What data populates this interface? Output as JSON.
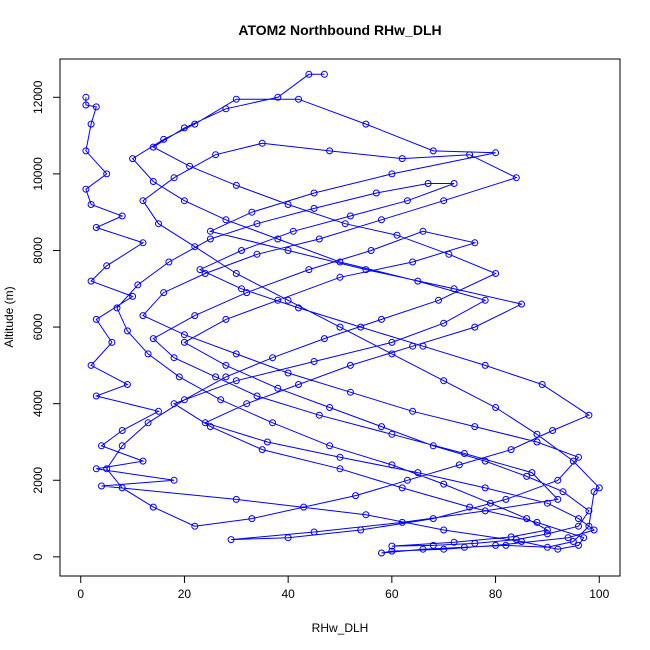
{
  "chart_data": {
    "type": "line",
    "title": "ATOM2 Northbound RHw_DLH",
    "xlabel": "RHw_DLH",
    "ylabel": "Altitude (m)",
    "xlim": [
      -4,
      104
    ],
    "ylim": [
      -500,
      13000
    ],
    "xticks": [
      0,
      20,
      40,
      60,
      80,
      100
    ],
    "yticks": [
      0,
      2000,
      4000,
      6000,
      8000,
      10000,
      12000
    ],
    "grid": false,
    "legend": "none",
    "colors": {
      "series": "#0000ff",
      "axis": "#000000",
      "background": "#ffffff"
    },
    "series": [
      {
        "marker": "open-circle",
        "line": true,
        "points": [
          [
            1,
            12000
          ],
          [
            1,
            11800
          ],
          [
            3,
            11750
          ],
          [
            2,
            11300
          ],
          [
            1,
            10600
          ],
          [
            5,
            10000
          ],
          [
            1,
            9600
          ],
          [
            2,
            9200
          ],
          [
            8,
            8900
          ],
          [
            3,
            8600
          ],
          [
            12,
            8200
          ],
          [
            5,
            7600
          ],
          [
            2,
            7200
          ],
          [
            10,
            6800
          ],
          [
            3,
            6200
          ],
          [
            6,
            5600
          ],
          [
            2,
            5000
          ],
          [
            9,
            4500
          ],
          [
            3,
            4200
          ],
          [
            15,
            3800
          ],
          [
            8,
            3300
          ],
          [
            4,
            2900
          ],
          [
            12,
            2500
          ],
          [
            3,
            2300
          ],
          [
            18,
            2000
          ],
          [
            4,
            1850
          ],
          [
            30,
            1500
          ],
          [
            55,
            1100
          ],
          [
            70,
            700
          ],
          [
            85,
            400
          ],
          [
            92,
            200
          ],
          [
            96,
            300
          ],
          [
            97,
            500
          ],
          [
            88,
            900
          ],
          [
            75,
            1300
          ],
          [
            62,
            1800
          ],
          [
            50,
            2300
          ],
          [
            35,
            2800
          ],
          [
            25,
            3400
          ],
          [
            18,
            4000
          ],
          [
            30,
            4600
          ],
          [
            45,
            5100
          ],
          [
            60,
            5600
          ],
          [
            70,
            6100
          ],
          [
            78,
            6700
          ],
          [
            65,
            7200
          ],
          [
            50,
            7700
          ],
          [
            38,
            8300
          ],
          [
            28,
            8800
          ],
          [
            20,
            9300
          ],
          [
            14,
            9800
          ],
          [
            10,
            10400
          ],
          [
            16,
            10900
          ],
          [
            22,
            11300
          ],
          [
            30,
            11950
          ],
          [
            42,
            11950
          ],
          [
            55,
            11300
          ],
          [
            68,
            10600
          ],
          [
            80,
            10550
          ],
          [
            60,
            10000
          ],
          [
            45,
            9500
          ],
          [
            33,
            9000
          ],
          [
            25,
            8500
          ],
          [
            40,
            8000
          ],
          [
            55,
            7500
          ],
          [
            72,
            7000
          ],
          [
            85,
            6600
          ],
          [
            76,
            6000
          ],
          [
            64,
            5500
          ],
          [
            52,
            5000
          ],
          [
            42,
            4500
          ],
          [
            32,
            4000
          ],
          [
            24,
            3500
          ],
          [
            36,
            3000
          ],
          [
            50,
            2600
          ],
          [
            65,
            2200
          ],
          [
            78,
            1800
          ],
          [
            90,
            1400
          ],
          [
            96,
            1000
          ],
          [
            99,
            700
          ],
          [
            94,
            500
          ],
          [
            80,
            300
          ],
          [
            70,
            200
          ],
          [
            60,
            150
          ],
          [
            58,
            100
          ],
          [
            66,
            200
          ],
          [
            74,
            250
          ],
          [
            82,
            300
          ],
          [
            90,
            250
          ],
          [
            95,
            400
          ],
          [
            98,
            800
          ],
          [
            99,
            1700
          ],
          [
            100,
            1800
          ],
          [
            95,
            2500
          ],
          [
            88,
            3200
          ],
          [
            80,
            3900
          ],
          [
            70,
            4600
          ],
          [
            60,
            5300
          ],
          [
            50,
            6000
          ],
          [
            40,
            6700
          ],
          [
            30,
            7400
          ],
          [
            22,
            8100
          ],
          [
            15,
            8700
          ],
          [
            12,
            9300
          ],
          [
            18,
            9900
          ],
          [
            26,
            10500
          ],
          [
            35,
            10800
          ],
          [
            48,
            10600
          ],
          [
            62,
            10400
          ],
          [
            75,
            10500
          ],
          [
            84,
            9900
          ],
          [
            70,
            9300
          ],
          [
            58,
            8800
          ],
          [
            46,
            8300
          ],
          [
            34,
            7900
          ],
          [
            24,
            7400
          ],
          [
            16,
            6900
          ],
          [
            12,
            6300
          ],
          [
            20,
            5800
          ],
          [
            30,
            5300
          ],
          [
            40,
            4800
          ],
          [
            52,
            4300
          ],
          [
            64,
            3800
          ],
          [
            76,
            3400
          ],
          [
            88,
            3000
          ],
          [
            96,
            2600
          ],
          [
            92,
            2000
          ],
          [
            82,
            1500
          ],
          [
            68,
            1000
          ],
          [
            54,
            700
          ],
          [
            40,
            500
          ],
          [
            29,
            450
          ],
          [
            45,
            650
          ],
          [
            62,
            900
          ],
          [
            78,
            1200
          ],
          [
            92,
            1500
          ],
          [
            87,
            2200
          ],
          [
            74,
            2700
          ],
          [
            60,
            3200
          ],
          [
            46,
            3700
          ],
          [
            34,
            4200
          ],
          [
            26,
            4700
          ],
          [
            18,
            5200
          ],
          [
            14,
            5700
          ],
          [
            22,
            6300
          ],
          [
            32,
            6900
          ],
          [
            44,
            7500
          ],
          [
            56,
            8000
          ],
          [
            66,
            8500
          ],
          [
            76,
            8200
          ],
          [
            64,
            7700
          ],
          [
            50,
            7300
          ],
          [
            38,
            6700
          ],
          [
            28,
            6200
          ],
          [
            20,
            5600
          ],
          [
            28,
            5000
          ],
          [
            38,
            4400
          ],
          [
            48,
            3900
          ],
          [
            58,
            3400
          ],
          [
            68,
            2900
          ],
          [
            78,
            2500
          ],
          [
            86,
            2100
          ],
          [
            93,
            1700
          ],
          [
            98,
            1200
          ],
          [
            96,
            800
          ],
          [
            90,
            600
          ],
          [
            84,
            450
          ],
          [
            76,
            350
          ],
          [
            68,
            300
          ],
          [
            60,
            280
          ],
          [
            72,
            380
          ],
          [
            83,
            520
          ],
          [
            90,
            700
          ],
          [
            86,
            1000
          ],
          [
            79,
            1400
          ],
          [
            70,
            1900
          ],
          [
            60,
            2400
          ],
          [
            48,
            2900
          ],
          [
            37,
            3500
          ],
          [
            27,
            4100
          ],
          [
            19,
            4700
          ],
          [
            13,
            5300
          ],
          [
            9,
            5900
          ],
          [
            7,
            6500
          ],
          [
            11,
            7100
          ],
          [
            17,
            7700
          ],
          [
            25,
            8300
          ],
          [
            34,
            8700
          ],
          [
            45,
            9100
          ],
          [
            57,
            9500
          ],
          [
            67,
            9750
          ],
          [
            72,
            9750
          ],
          [
            63,
            9300
          ],
          [
            52,
            8900
          ],
          [
            41,
            8500
          ],
          [
            31,
            8000
          ],
          [
            23,
            7500
          ],
          [
            31,
            7000
          ],
          [
            42,
            6500
          ],
          [
            54,
            6000
          ],
          [
            66,
            5500
          ],
          [
            78,
            5000
          ],
          [
            89,
            4500
          ],
          [
            98,
            3700
          ],
          [
            91,
            3300
          ],
          [
            83,
            2800
          ],
          [
            73,
            2400
          ],
          [
            63,
            2000
          ],
          [
            53,
            1600
          ],
          [
            43,
            1300
          ],
          [
            33,
            1000
          ],
          [
            22,
            800
          ],
          [
            14,
            1300
          ],
          [
            8,
            1800
          ],
          [
            5,
            2300
          ],
          [
            8,
            2900
          ],
          [
            13,
            3500
          ],
          [
            20,
            4100
          ],
          [
            28,
            4700
          ],
          [
            37,
            5200
          ],
          [
            47,
            5700
          ],
          [
            58,
            6200
          ],
          [
            69,
            6700
          ],
          [
            80,
            7400
          ],
          [
            71,
            7900
          ],
          [
            61,
            8400
          ],
          [
            51,
            8700
          ],
          [
            40,
            9200
          ],
          [
            30,
            9700
          ],
          [
            21,
            10200
          ],
          [
            14,
            10700
          ],
          [
            20,
            11200
          ],
          [
            28,
            11700
          ],
          [
            38,
            12000
          ],
          [
            44,
            12600
          ],
          [
            47,
            12600
          ]
        ]
      }
    ]
  }
}
